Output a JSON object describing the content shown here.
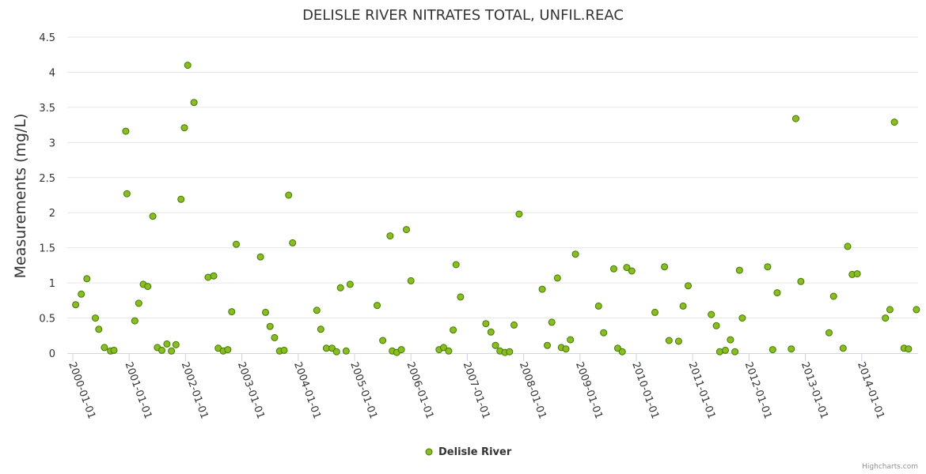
{
  "chart_data": {
    "type": "scatter",
    "title": "DELISLE RIVER NITRATES TOTAL, UNFIL.REAC",
    "xlabel": "",
    "ylabel": "Measurements (mg/L)",
    "ylim": [
      0,
      4.5
    ],
    "yticks": [
      "0",
      "0.5",
      "1",
      "1.5",
      "2",
      "2.5",
      "3",
      "3.5",
      "4",
      "4.5"
    ],
    "xlim": [
      2000.0,
      2014.99
    ],
    "xticks": [
      {
        "value": 2000,
        "label": "2000-01-01"
      },
      {
        "value": 2001,
        "label": "2001-01-01"
      },
      {
        "value": 2002,
        "label": "2002-01-01"
      },
      {
        "value": 2003,
        "label": "2003-01-01"
      },
      {
        "value": 2004,
        "label": "2004-01-01"
      },
      {
        "value": 2005,
        "label": "2005-01-01"
      },
      {
        "value": 2006,
        "label": "2006-01-01"
      },
      {
        "value": 2007,
        "label": "2007-01-01"
      },
      {
        "value": 2008,
        "label": "2008-01-01"
      },
      {
        "value": 2009,
        "label": "2009-01-01"
      },
      {
        "value": 2010,
        "label": "2010-01-01"
      },
      {
        "value": 2011,
        "label": "2011-01-01"
      },
      {
        "value": 2012,
        "label": "2012-01-01"
      },
      {
        "value": 2013,
        "label": "2013-01-01"
      },
      {
        "value": 2014,
        "label": "2014-01-01"
      }
    ],
    "legend": {
      "position": "bottom-center"
    },
    "credits": "Highcharts.com",
    "marker_color": "#8bbc21",
    "marker_stroke": "#3f7a00",
    "series": [
      {
        "name": "Delisle River",
        "points": [
          [
            2000.05,
            0.69
          ],
          [
            2000.15,
            0.84
          ],
          [
            2000.25,
            1.06
          ],
          [
            2000.4,
            0.5
          ],
          [
            2000.46,
            0.34
          ],
          [
            2000.56,
            0.08
          ],
          [
            2000.67,
            0.03
          ],
          [
            2000.73,
            0.04
          ],
          [
            2000.94,
            3.16
          ],
          [
            2000.96,
            2.27
          ],
          [
            2001.1,
            0.46
          ],
          [
            2001.17,
            0.71
          ],
          [
            2001.25,
            0.98
          ],
          [
            2001.33,
            0.95
          ],
          [
            2001.42,
            1.95
          ],
          [
            2001.5,
            0.08
          ],
          [
            2001.58,
            0.04
          ],
          [
            2001.67,
            0.13
          ],
          [
            2001.75,
            0.03
          ],
          [
            2001.83,
            0.12
          ],
          [
            2001.92,
            2.19
          ],
          [
            2001.98,
            3.21
          ],
          [
            2002.04,
            4.1
          ],
          [
            2002.15,
            3.57
          ],
          [
            2002.4,
            1.08
          ],
          [
            2002.5,
            1.1
          ],
          [
            2002.58,
            0.07
          ],
          [
            2002.67,
            0.03
          ],
          [
            2002.75,
            0.05
          ],
          [
            2002.82,
            0.59
          ],
          [
            2002.9,
            1.55
          ],
          [
            2003.33,
            1.37
          ],
          [
            2003.42,
            0.58
          ],
          [
            2003.5,
            0.38
          ],
          [
            2003.58,
            0.22
          ],
          [
            2003.67,
            0.03
          ],
          [
            2003.75,
            0.04
          ],
          [
            2003.83,
            2.25
          ],
          [
            2003.9,
            1.57
          ],
          [
            2004.33,
            0.61
          ],
          [
            2004.4,
            0.34
          ],
          [
            2004.5,
            0.07
          ],
          [
            2004.6,
            0.07
          ],
          [
            2004.68,
            0.02
          ],
          [
            2004.75,
            0.93
          ],
          [
            2004.85,
            0.03
          ],
          [
            2004.92,
            0.98
          ],
          [
            2005.4,
            0.68
          ],
          [
            2005.5,
            0.18
          ],
          [
            2005.63,
            1.67
          ],
          [
            2005.67,
            0.03
          ],
          [
            2005.75,
            0.01
          ],
          [
            2005.83,
            0.05
          ],
          [
            2005.92,
            1.76
          ],
          [
            2006.0,
            1.03
          ],
          [
            2006.5,
            0.05
          ],
          [
            2006.58,
            0.08
          ],
          [
            2006.67,
            0.03
          ],
          [
            2006.75,
            0.33
          ],
          [
            2006.8,
            1.26
          ],
          [
            2006.88,
            0.8
          ],
          [
            2007.33,
            0.42
          ],
          [
            2007.42,
            0.3
          ],
          [
            2007.5,
            0.11
          ],
          [
            2007.58,
            0.03
          ],
          [
            2007.67,
            0.01
          ],
          [
            2007.75,
            0.02
          ],
          [
            2007.83,
            0.4
          ],
          [
            2007.92,
            1.98
          ],
          [
            2008.33,
            0.91
          ],
          [
            2008.42,
            0.11
          ],
          [
            2008.5,
            0.44
          ],
          [
            2008.6,
            1.07
          ],
          [
            2008.67,
            0.08
          ],
          [
            2008.75,
            0.06
          ],
          [
            2008.83,
            0.19
          ],
          [
            2008.92,
            1.41
          ],
          [
            2009.33,
            0.67
          ],
          [
            2009.42,
            0.29
          ],
          [
            2009.6,
            1.2
          ],
          [
            2009.67,
            0.07
          ],
          [
            2009.75,
            0.02
          ],
          [
            2009.83,
            1.22
          ],
          [
            2009.92,
            1.17
          ],
          [
            2010.33,
            0.58
          ],
          [
            2010.5,
            1.23
          ],
          [
            2010.58,
            0.18
          ],
          [
            2010.75,
            0.17
          ],
          [
            2010.83,
            0.67
          ],
          [
            2010.92,
            0.96
          ],
          [
            2011.33,
            0.55
          ],
          [
            2011.42,
            0.39
          ],
          [
            2011.48,
            0.02
          ],
          [
            2011.58,
            0.04
          ],
          [
            2011.67,
            0.19
          ],
          [
            2011.75,
            0.02
          ],
          [
            2011.83,
            1.18
          ],
          [
            2011.88,
            0.5
          ],
          [
            2012.33,
            1.23
          ],
          [
            2012.42,
            0.05
          ],
          [
            2012.5,
            0.86
          ],
          [
            2012.75,
            0.06
          ],
          [
            2012.83,
            3.34
          ],
          [
            2012.92,
            1.02
          ],
          [
            2013.42,
            0.29
          ],
          [
            2013.5,
            0.81
          ],
          [
            2013.67,
            0.07
          ],
          [
            2013.75,
            1.52
          ],
          [
            2013.83,
            1.12
          ],
          [
            2013.92,
            1.13
          ],
          [
            2014.42,
            0.5
          ],
          [
            2014.5,
            0.62
          ],
          [
            2014.58,
            3.29
          ],
          [
            2014.75,
            0.07
          ],
          [
            2014.83,
            0.06
          ],
          [
            2014.97,
            0.62
          ]
        ]
      }
    ]
  }
}
